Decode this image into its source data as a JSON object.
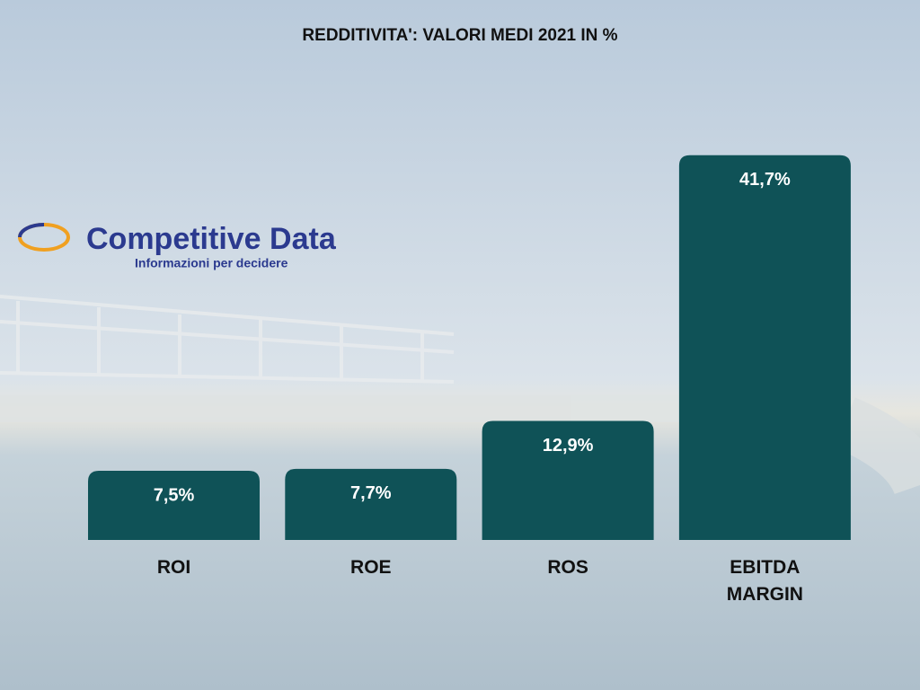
{
  "chart_data": {
    "type": "bar",
    "title": "REDDITIVITA': VALORI MEDI 2021 IN %",
    "categories": [
      "ROI",
      "ROE",
      "ROS",
      "EBITDA MARGIN"
    ],
    "values": [
      7.5,
      7.7,
      12.9,
      41.7
    ],
    "value_labels": [
      "7,5%",
      "7,7%",
      "12,9%",
      "41,7%"
    ],
    "color": "#0f5257"
  },
  "logo": {
    "name": "Competitive Data",
    "tagline": "Informazioni per decidere"
  }
}
